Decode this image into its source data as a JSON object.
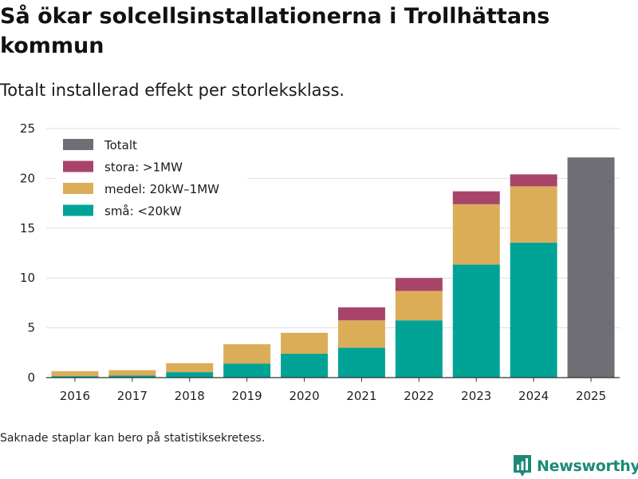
{
  "title": "Så ökar solcellsinstallationerna i Trollhättans kommun",
  "subtitle": "Totalt installerad effekt per storleksklass.",
  "footnote": "Saknade staplar kan bero på statistiksekretess.",
  "brand": "Newsworthy",
  "colors": {
    "sma": "#00a396",
    "medel": "#dbad59",
    "stora": "#a84469",
    "totalt": "#6f6e74",
    "grid": "#dedede",
    "brand": "#1d8a78"
  },
  "chart_data": {
    "type": "bar",
    "stacked": true,
    "categories": [
      "2016",
      "2017",
      "2018",
      "2019",
      "2020",
      "2021",
      "2022",
      "2023",
      "2024",
      "2025"
    ],
    "series": [
      {
        "key": "sma",
        "name": "små: <20kW",
        "values": [
          0.15,
          0.2,
          0.55,
          1.4,
          2.4,
          3.0,
          5.75,
          11.35,
          13.55,
          0
        ]
      },
      {
        "key": "medel",
        "name": "medel: 20kW–1MW",
        "values": [
          0.5,
          0.55,
          0.9,
          1.95,
          2.1,
          2.75,
          2.95,
          6.05,
          5.65,
          0
        ]
      },
      {
        "key": "stora",
        "name": "stora: >1MW",
        "values": [
          0,
          0,
          0,
          0,
          0,
          1.3,
          1.3,
          1.3,
          1.2,
          0
        ]
      },
      {
        "key": "totalt",
        "name": "Totalt",
        "values": [
          0,
          0,
          0,
          0,
          0,
          0,
          0,
          0,
          0,
          22.1
        ]
      }
    ],
    "legend_order": [
      "totalt",
      "stora",
      "medel",
      "sma"
    ],
    "yticks": [
      0,
      5,
      10,
      15,
      20,
      25
    ],
    "ylim": [
      0,
      25
    ],
    "xlabel": "",
    "ylabel": "",
    "legend_position": "top-left"
  }
}
